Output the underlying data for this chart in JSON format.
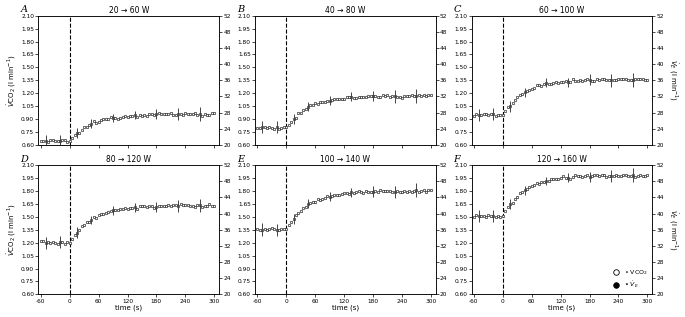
{
  "panels": [
    {
      "label": "A",
      "title": "20 → 60 W",
      "vco2_baseline": 0.645,
      "vco2_end": 0.96,
      "ve_baseline": 0.625,
      "ve_end": 0.925,
      "ylim_left": [
        0.6,
        2.1
      ],
      "ylim_right": [
        20,
        52
      ],
      "show_left_label": true,
      "show_right_label": false,
      "show_xlabel": false,
      "row": 0,
      "col": 0
    },
    {
      "label": "B",
      "title": "40 → 80 W",
      "vco2_baseline": 0.8,
      "vco2_end": 1.17,
      "ve_baseline": 0.78,
      "ve_end": 1.12,
      "ylim_left": [
        0.6,
        2.1
      ],
      "ylim_right": [
        20,
        52
      ],
      "show_left_label": false,
      "show_right_label": false,
      "show_xlabel": false,
      "row": 0,
      "col": 1
    },
    {
      "label": "C",
      "title": "60 → 100 W",
      "vco2_baseline": 0.95,
      "vco2_end": 1.36,
      "ve_baseline": 0.92,
      "ve_end": 1.3,
      "ylim_left": [
        0.6,
        2.1
      ],
      "ylim_right": [
        20,
        52
      ],
      "show_left_label": false,
      "show_right_label": true,
      "show_xlabel": false,
      "row": 0,
      "col": 2
    },
    {
      "label": "D",
      "title": "80 → 120 W",
      "vco2_baseline": 1.2,
      "vco2_end": 1.63,
      "ve_baseline": 1.165,
      "ve_end": 1.565,
      "ylim_left": [
        0.6,
        2.1
      ],
      "ylim_right": [
        20,
        52
      ],
      "show_left_label": true,
      "show_right_label": false,
      "show_xlabel": true,
      "row": 1,
      "col": 0
    },
    {
      "label": "E",
      "title": "100 → 140 W",
      "vco2_baseline": 1.355,
      "vco2_end": 1.8,
      "ve_baseline": 1.32,
      "ve_end": 1.755,
      "ylim_left": [
        0.6,
        2.1
      ],
      "ylim_right": [
        20,
        52
      ],
      "show_left_label": false,
      "show_right_label": false,
      "show_xlabel": true,
      "row": 1,
      "col": 1
    },
    {
      "label": "F",
      "title": "120 → 160 W",
      "vco2_baseline": 1.51,
      "vco2_end": 1.98,
      "ve_baseline": 1.49,
      "ve_end": 1.945,
      "ylim_left": [
        0.6,
        2.1
      ],
      "ylim_right": [
        20,
        52
      ],
      "show_left_label": false,
      "show_right_label": true,
      "show_xlabel": true,
      "row": 1,
      "col": 2
    }
  ],
  "yticks_left": [
    0.6,
    0.75,
    0.9,
    1.05,
    1.2,
    1.35,
    1.5,
    1.65,
    1.8,
    1.95,
    2.1
  ],
  "yticks_right": [
    20,
    24,
    28,
    32,
    36,
    40,
    44,
    48,
    52
  ],
  "xticks": [
    -60,
    0,
    60,
    120,
    180,
    240,
    300
  ],
  "xlim": [
    -65,
    310
  ],
  "xlabel": "time (s)"
}
